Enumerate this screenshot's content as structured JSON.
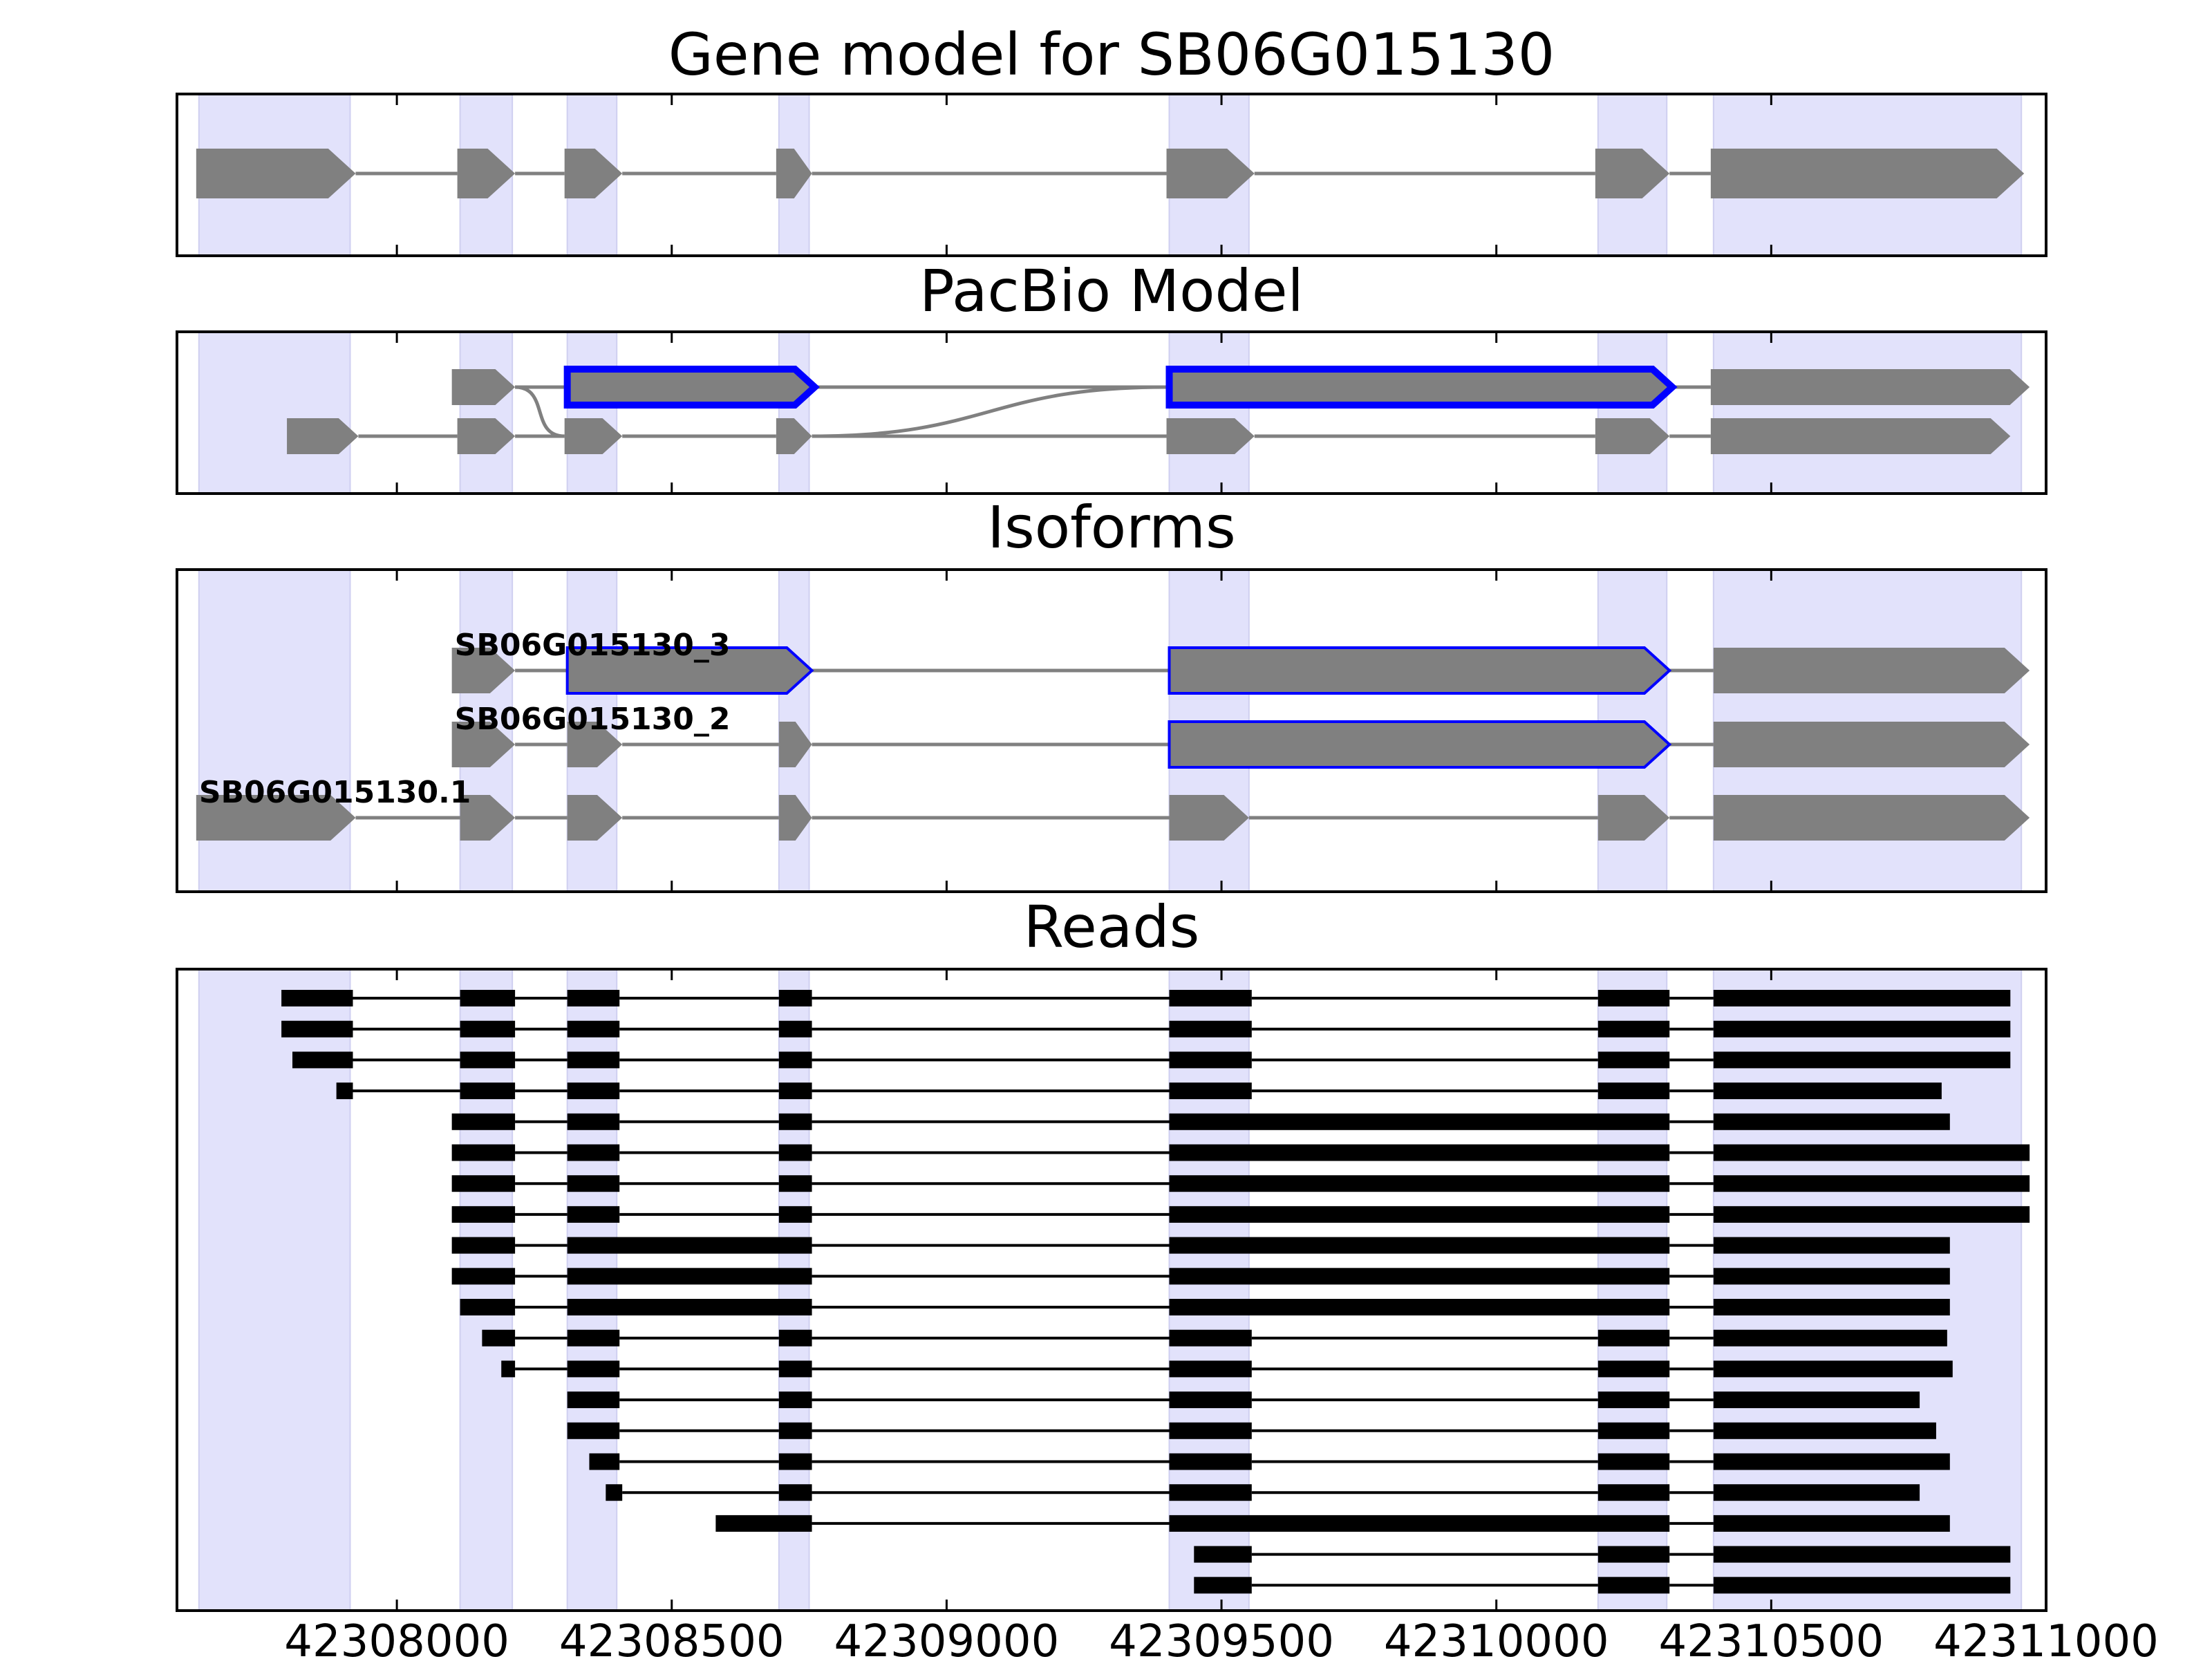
{
  "figure": {
    "panels": [
      {
        "id": "gene",
        "title": "Gene model for SB06G015130"
      },
      {
        "id": "pacbio",
        "title": "PacBio Model"
      },
      {
        "id": "isoforms",
        "title": "Isoforms"
      },
      {
        "id": "reads",
        "title": "Reads"
      }
    ],
    "x_axis": {
      "range": [
        42307600,
        42311000
      ],
      "ticks": [
        42308000,
        42308500,
        42309000,
        42309500,
        42310000,
        42310500,
        42311000
      ],
      "tick_labels": [
        "42308000",
        "42308500",
        "42309000",
        "42309500",
        "42310000",
        "42310500",
        "42311000"
      ]
    },
    "colors": {
      "shade": "#e2e2fb",
      "exon": "#808080",
      "highlight": "#0000ff",
      "read": "#000000",
      "intron": "#808080"
    }
  },
  "chart_data": {
    "type": "gene_model",
    "shaded_regions": [
      [
        42307640,
        42307915
      ],
      [
        42308115,
        42308210
      ],
      [
        42308310,
        42308400
      ],
      [
        42308695,
        42308750
      ],
      [
        42309405,
        42309550
      ],
      [
        42310185,
        42310310
      ],
      [
        42310395,
        42310955
      ]
    ],
    "gene_model": {
      "exons": [
        [
          42307635,
          42307925
        ],
        [
          42308110,
          42308215
        ],
        [
          42308305,
          42308410
        ],
        [
          42308690,
          42308755
        ],
        [
          42309400,
          42309560
        ],
        [
          42310180,
          42310315
        ],
        [
          42310390,
          42310960
        ]
      ],
      "strand": "+"
    },
    "pacbio_model": {
      "rows": [
        {
          "exons": [
            [
              42308100,
              42308215
            ],
            [
              42308310,
              42308760
            ],
            [
              42309405,
              42310320
            ],
            [
              42310390,
              42310970
            ]
          ],
          "highlighted": [
            [
              42308310,
              42308760
            ],
            [
              42309405,
              42310320
            ]
          ]
        },
        {
          "exons": [
            [
              42307800,
              42307930
            ],
            [
              42308110,
              42308215
            ],
            [
              42308305,
              42308410
            ],
            [
              42308690,
              42308755
            ],
            [
              42309400,
              42309560
            ],
            [
              42310180,
              42310315
            ],
            [
              42310390,
              42310935
            ]
          ],
          "highlighted": []
        }
      ]
    },
    "isoforms": [
      {
        "name": "SB06G015130_3",
        "exons": [
          [
            42308100,
            42308215
          ],
          [
            42308310,
            42308755
          ],
          [
            42309405,
            42310315
          ],
          [
            42310395,
            42310970
          ]
        ],
        "highlighted": [
          [
            42308310,
            42308755
          ],
          [
            42309405,
            42310315
          ]
        ]
      },
      {
        "name": "SB06G015130_2",
        "exons": [
          [
            42308100,
            42308215
          ],
          [
            42308310,
            42308410
          ],
          [
            42308695,
            42308755
          ],
          [
            42309405,
            42310315
          ],
          [
            42310395,
            42310970
          ]
        ],
        "highlighted": [
          [
            42309405,
            42310315
          ]
        ]
      },
      {
        "name": "SB06G015130.1",
        "exons": [
          [
            42307635,
            42307925
          ],
          [
            42308115,
            42308215
          ],
          [
            42308310,
            42308410
          ],
          [
            42308695,
            42308755
          ],
          [
            42309405,
            42309550
          ],
          [
            42310185,
            42310315
          ],
          [
            42310395,
            42310970
          ]
        ],
        "highlighted": []
      }
    ],
    "reads": [
      [
        [
          42307790,
          42307920
        ],
        [
          42308115,
          42308215
        ],
        [
          42308310,
          42308405
        ],
        [
          42308695,
          42308755
        ],
        [
          42309405,
          42309555
        ],
        [
          42310185,
          42310315
        ],
        [
          42310395,
          42310935
        ]
      ],
      [
        [
          42307790,
          42307920
        ],
        [
          42308115,
          42308215
        ],
        [
          42308310,
          42308405
        ],
        [
          42308695,
          42308755
        ],
        [
          42309405,
          42309555
        ],
        [
          42310185,
          42310315
        ],
        [
          42310395,
          42310935
        ]
      ],
      [
        [
          42307810,
          42307920
        ],
        [
          42308115,
          42308215
        ],
        [
          42308310,
          42308405
        ],
        [
          42308695,
          42308755
        ],
        [
          42309405,
          42309555
        ],
        [
          42310185,
          42310315
        ],
        [
          42310395,
          42310935
        ]
      ],
      [
        [
          42307890,
          42307920
        ],
        [
          42308115,
          42308215
        ],
        [
          42308310,
          42308405
        ],
        [
          42308695,
          42308755
        ],
        [
          42309405,
          42309555
        ],
        [
          42310185,
          42310315
        ],
        [
          42310395,
          42310810
        ]
      ],
      [
        [
          42308100,
          42308215
        ],
        [
          42308310,
          42308405
        ],
        [
          42308695,
          42308755
        ],
        [
          42309405,
          42310315
        ],
        [
          42310395,
          42310825
        ]
      ],
      [
        [
          42308100,
          42308215
        ],
        [
          42308310,
          42308405
        ],
        [
          42308695,
          42308755
        ],
        [
          42309405,
          42310315
        ],
        [
          42310395,
          42310970
        ]
      ],
      [
        [
          42308100,
          42308215
        ],
        [
          42308310,
          42308405
        ],
        [
          42308695,
          42308755
        ],
        [
          42309405,
          42310315
        ],
        [
          42310395,
          42310970
        ]
      ],
      [
        [
          42308100,
          42308215
        ],
        [
          42308310,
          42308405
        ],
        [
          42308695,
          42308755
        ],
        [
          42309405,
          42310315
        ],
        [
          42310395,
          42310970
        ]
      ],
      [
        [
          42308100,
          42308215
        ],
        [
          42308310,
          42308755
        ],
        [
          42309405,
          42310315
        ],
        [
          42310395,
          42310825
        ]
      ],
      [
        [
          42308100,
          42308215
        ],
        [
          42308310,
          42308755
        ],
        [
          42309405,
          42310315
        ],
        [
          42310395,
          42310825
        ]
      ],
      [
        [
          42308115,
          42308215
        ],
        [
          42308310,
          42308755
        ],
        [
          42309405,
          42310315
        ],
        [
          42310395,
          42310825
        ]
      ],
      [
        [
          42308155,
          42308215
        ],
        [
          42308310,
          42308405
        ],
        [
          42308695,
          42308755
        ],
        [
          42309405,
          42309555
        ],
        [
          42310185,
          42310315
        ],
        [
          42310395,
          42310820
        ]
      ],
      [
        [
          42308190,
          42308215
        ],
        [
          42308310,
          42308405
        ],
        [
          42308695,
          42308755
        ],
        [
          42309405,
          42309555
        ],
        [
          42310185,
          42310315
        ],
        [
          42310395,
          42310830
        ]
      ],
      [
        [
          42308310,
          42308405
        ],
        [
          42308695,
          42308755
        ],
        [
          42309405,
          42309555
        ],
        [
          42310185,
          42310315
        ],
        [
          42310395,
          42310770
        ]
      ],
      [
        [
          42308310,
          42308405
        ],
        [
          42308695,
          42308755
        ],
        [
          42309405,
          42309555
        ],
        [
          42310185,
          42310315
        ],
        [
          42310395,
          42310800
        ]
      ],
      [
        [
          42308350,
          42308405
        ],
        [
          42308695,
          42308755
        ],
        [
          42309405,
          42309555
        ],
        [
          42310185,
          42310315
        ],
        [
          42310395,
          42310825
        ]
      ],
      [
        [
          42308380,
          42308410
        ],
        [
          42308695,
          42308755
        ],
        [
          42309405,
          42309555
        ],
        [
          42310185,
          42310315
        ],
        [
          42310395,
          42310770
        ]
      ],
      [
        [
          42308580,
          42308755
        ],
        [
          42309405,
          42310315
        ],
        [
          42310395,
          42310825
        ]
      ],
      [
        [
          42309450,
          42309555
        ],
        [
          42310185,
          42310315
        ],
        [
          42310395,
          42310935
        ]
      ],
      [
        [
          42309450,
          42309555
        ],
        [
          42310185,
          42310315
        ],
        [
          42310395,
          42310935
        ]
      ]
    ]
  }
}
